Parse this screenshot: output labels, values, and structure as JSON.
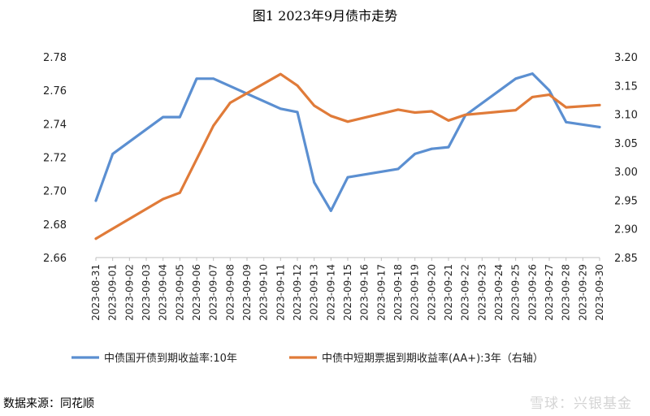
{
  "chart_data": {
    "type": "line",
    "title": "图1 2023年9月债市走势",
    "categories": [
      "2023-08-31",
      "2023-09-01",
      "2023-09-02",
      "2023-09-03",
      "2023-09-04",
      "2023-09-05",
      "2023-09-06",
      "2023-09-07",
      "2023-09-08",
      "2023-09-09",
      "2023-09-10",
      "2023-09-11",
      "2023-09-12",
      "2023-09-13",
      "2023-09-14",
      "2023-09-15",
      "2023-09-16",
      "2023-09-17",
      "2023-09-18",
      "2023-09-19",
      "2023-09-20",
      "2023-09-21",
      "2023-09-22",
      "2023-09-23",
      "2023-09-24",
      "2023-09-25",
      "2023-09-26",
      "2023-09-27",
      "2023-09-28",
      "2023-09-29",
      "2023-09-30"
    ],
    "y_left": {
      "ylim": [
        2.66,
        2.78
      ],
      "ticks": [
        "2.66",
        "2.68",
        "2.70",
        "2.72",
        "2.74",
        "2.76",
        "2.78"
      ]
    },
    "y_right": {
      "ylim": [
        2.85,
        3.2
      ],
      "ticks": [
        "2.85",
        "2.90",
        "2.95",
        "3.00",
        "3.05",
        "3.10",
        "3.15",
        "3.20"
      ]
    },
    "grid": false,
    "legend_position": "bottom",
    "series": [
      {
        "name": "中债国开债到期收益率:10年",
        "axis": "left",
        "color": "#5b8fd1",
        "values": [
          2.694,
          2.722,
          null,
          null,
          2.744,
          2.744,
          2.767,
          2.767,
          null,
          null,
          null,
          2.749,
          2.747,
          2.705,
          2.688,
          2.708,
          null,
          null,
          2.713,
          2.722,
          2.725,
          2.726,
          2.745,
          null,
          null,
          2.767,
          2.77,
          2.76,
          2.741,
          null,
          2.738
        ]
      },
      {
        "name": "中债中短期票据到期收益率(AA+):3年（右轴）",
        "axis": "right",
        "color": "#e07b39",
        "values": [
          2.883,
          null,
          null,
          null,
          2.952,
          2.963,
          null,
          3.08,
          3.12,
          null,
          null,
          3.17,
          3.15,
          3.115,
          3.097,
          3.087,
          null,
          null,
          3.108,
          3.103,
          3.105,
          3.089,
          3.099,
          null,
          null,
          3.107,
          3.13,
          3.134,
          3.112,
          null,
          3.116
        ]
      }
    ]
  },
  "source_note": "数据来源：同花顺",
  "watermark": "雪球：兴银基金"
}
